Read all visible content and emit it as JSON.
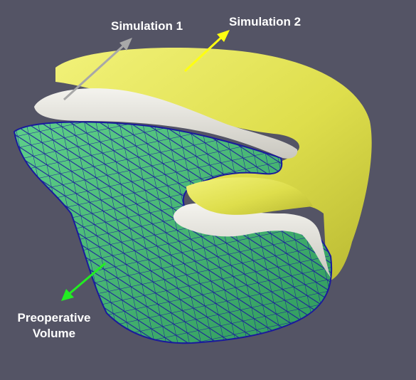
{
  "labels": {
    "simulation_1": "Simulation 1",
    "simulation_2": "Simulation 2",
    "preoperative_line1": "Preoperative",
    "preoperative_line2": "Volume"
  },
  "colors": {
    "background": "#545465",
    "simulation_1": "#e6e4dc",
    "simulation_2": "#e3e35a",
    "preoperative_fill": "#4dbb73",
    "preoperative_mesh": "#1a1a9c",
    "arrow_simulation_1": "#a8a8a8",
    "arrow_simulation_2": "#ffff10",
    "arrow_preoperative": "#22ee22"
  }
}
